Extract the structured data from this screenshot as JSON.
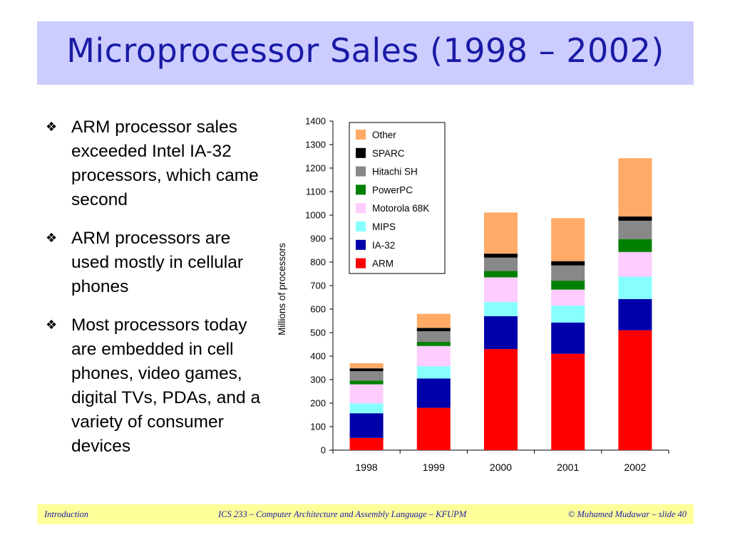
{
  "slide": {
    "title": "Microprocessor Sales (1998 – 2002)",
    "bullets": [
      "ARM processor sales exceeded Intel IA-32 processors, which came second",
      "ARM processors are used mostly in cellular phones",
      "Most processors today are embedded in cell phones, video games, digital TVs, PDAs, and a variety of consumer devices"
    ],
    "bullet_icon": "diamond-fleuron-icon"
  },
  "footer": {
    "left": "Introduction",
    "center": "ICS 233 – Computer Architecture and Assembly Language – KFUPM",
    "right": "© Muhamed Mudawar – slide 40"
  },
  "colors": {
    "title_bg": "#ccccff",
    "title_text": "#1a1aa6",
    "footer_bg": "#ffff99"
  },
  "chart_data": {
    "type": "bar",
    "stacked": true,
    "categories": [
      "1998",
      "1999",
      "2000",
      "2001",
      "2002"
    ],
    "ylabel": "Millions of processors",
    "xlabel": "",
    "ylim": [
      0,
      1400
    ],
    "yticks": [
      0,
      100,
      200,
      300,
      400,
      500,
      600,
      700,
      800,
      900,
      1000,
      1100,
      1200,
      1300,
      1400
    ],
    "legend_position": "top-left",
    "grid": false,
    "series": [
      {
        "name": "ARM",
        "color": "#ff0000",
        "values": [
          52,
          180,
          430,
          410,
          510
        ]
      },
      {
        "name": "IA-32",
        "color": "#0000aa",
        "values": [
          105,
          125,
          140,
          133,
          133
        ]
      },
      {
        "name": "MIPS",
        "color": "#88ffff",
        "values": [
          42,
          52,
          60,
          72,
          95
        ]
      },
      {
        "name": "Motorola 68K",
        "color": "#ffccff",
        "values": [
          81,
          86,
          105,
          68,
          105
        ]
      },
      {
        "name": "PowerPC",
        "color": "#008000",
        "values": [
          16,
          18,
          27,
          38,
          55
        ]
      },
      {
        "name": "Hitachi SH",
        "color": "#888888",
        "values": [
          40,
          45,
          57,
          65,
          78
        ]
      },
      {
        "name": "SPARC",
        "color": "#000000",
        "values": [
          12,
          14,
          17,
          18,
          18
        ]
      },
      {
        "name": "Other",
        "color": "#ffaa66",
        "values": [
          22,
          60,
          175,
          183,
          248
        ]
      }
    ],
    "legend_order": [
      "Other",
      "SPARC",
      "Hitachi SH",
      "PowerPC",
      "Motorola 68K",
      "MIPS",
      "IA-32",
      "ARM"
    ]
  }
}
